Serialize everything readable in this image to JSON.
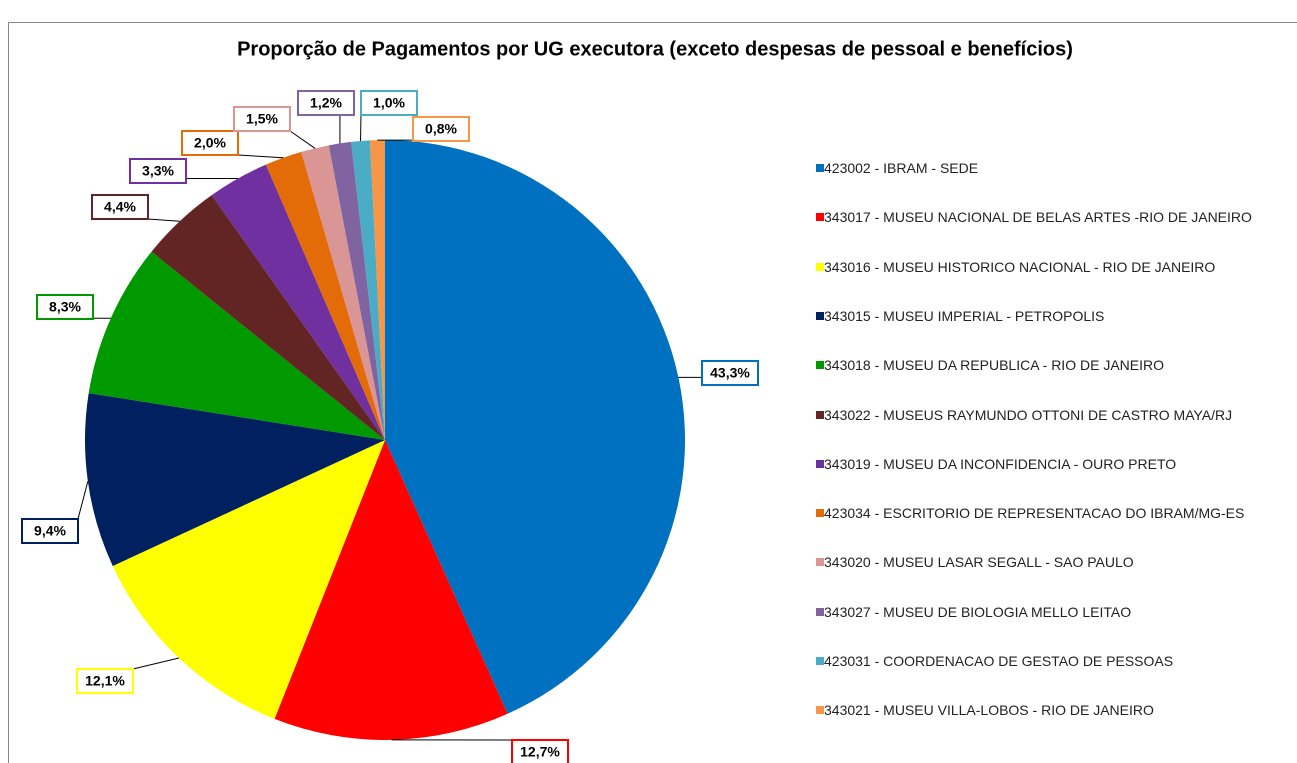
{
  "chart_data": {
    "type": "pie",
    "title": "Proporção de Pagamentos por UG executora (exceto despesas de pessoal e benefícios)",
    "series": [
      {
        "name": "423002 - IBRAM - SEDE",
        "color": "#0070c0",
        "values": [
          43.3
        ],
        "value_labels": [
          "43,3%"
        ]
      },
      {
        "name": "343017 - MUSEU NACIONAL DE BELAS ARTES -RIO DE JANEIRO",
        "color": "#ff0000",
        "values": [
          12.7
        ],
        "value_labels": [
          "12,7%"
        ]
      },
      {
        "name": "343016 - MUSEU HISTORICO NACIONAL - RIO DE JANEIRO",
        "color": "#ffff00",
        "values": [
          12.1
        ],
        "value_labels": [
          "12,1%"
        ]
      },
      {
        "name": "343015 - MUSEU IMPERIAL - PETROPOLIS",
        "color": "#002060",
        "values": [
          9.4
        ],
        "value_labels": [
          "9,4%"
        ]
      },
      {
        "name": "343018 - MUSEU DA REPUBLICA - RIO DE JANEIRO",
        "color": "#009a00",
        "values": [
          8.3
        ],
        "value_labels": [
          "8,3%"
        ]
      },
      {
        "name": "343022 - MUSEUS RAYMUNDO OTTONI DE CASTRO MAYA/RJ",
        "color": "#632523",
        "values": [
          4.4
        ],
        "value_labels": [
          "4,4%"
        ]
      },
      {
        "name": "343019 - MUSEU DA INCONFIDENCIA - OURO PRETO",
        "color": "#7030a0",
        "values": [
          3.3
        ],
        "value_labels": [
          "3,3%"
        ]
      },
      {
        "name": "423034 - ESCRITORIO DE REPRESENTACAO DO IBRAM/MG-ES",
        "color": "#e36c09",
        "values": [
          2.0
        ],
        "value_labels": [
          "2,0%"
        ]
      },
      {
        "name": "343020 - MUSEU LASAR SEGALL - SAO PAULO",
        "color": "#d99694",
        "values": [
          1.5
        ],
        "value_labels": [
          "1,5%"
        ]
      },
      {
        "name": "343027 - MUSEU DE BIOLOGIA MELLO LEITAO",
        "color": "#8064a2",
        "values": [
          1.2
        ],
        "value_labels": [
          "1,2%"
        ]
      },
      {
        "name": "423031 - COORDENACAO DE GESTAO DE PESSOAS",
        "color": "#4bacc6",
        "values": [
          1.0
        ],
        "value_labels": [
          "1,0%"
        ]
      },
      {
        "name": "343021 - MUSEU VILLA-LOBOS - RIO DE JANEIRO",
        "color": "#f79646",
        "values": [
          0.8
        ],
        "value_labels": [
          "0,8%"
        ]
      }
    ],
    "legend": "right"
  }
}
